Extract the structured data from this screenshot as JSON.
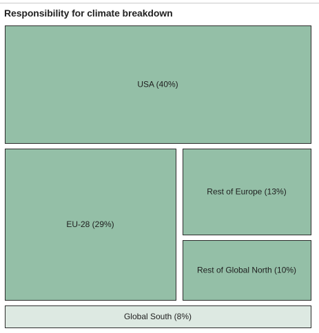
{
  "chart_data": {
    "type": "treemap",
    "title": "Responsibility for climate breakdown",
    "unit": "%",
    "categories": [
      "USA",
      "EU-28",
      "Rest of Europe",
      "Rest of Global North",
      "Global South"
    ],
    "values": [
      40,
      29,
      13,
      10,
      8
    ],
    "labels": [
      "USA (40%)",
      "EU-28 (29%)",
      "Rest of Europe (13%)",
      "Rest of Global North (10%)",
      "Global South (8%)"
    ],
    "colors": {
      "global_north": "#94bfa7",
      "global_south": "#dde9e2",
      "border": "#2b2b2b"
    }
  }
}
